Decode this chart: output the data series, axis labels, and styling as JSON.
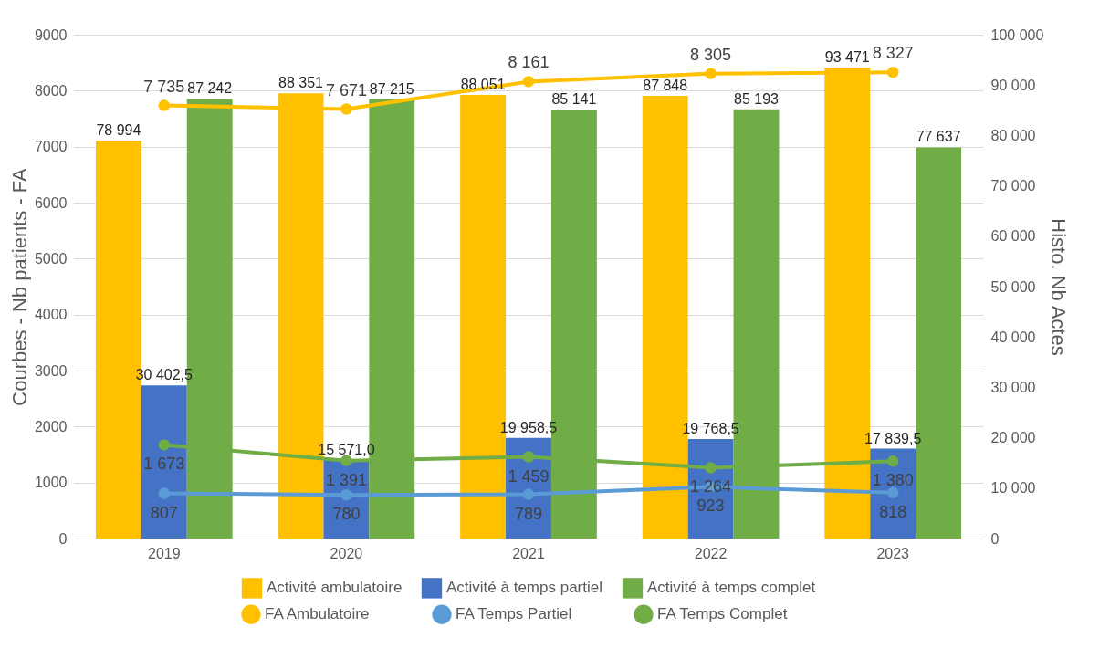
{
  "chart_data": {
    "type": "bar",
    "ylabel": "Courbes - Nb patients - FA",
    "y2label": "Histo. Nb Actes",
    "categories": [
      "2019",
      "2020",
      "2021",
      "2022",
      "2023"
    ],
    "series": [
      {
        "name": "Activité ambulatoire",
        "axis": "y2",
        "color": "#ffc000",
        "values": [
          78994,
          88351,
          88051,
          87848,
          93471
        ],
        "value_labels": [
          "78 994",
          "88 351",
          "88 051",
          "87 848",
          "93 471"
        ]
      },
      {
        "name": "Activité à temps partiel",
        "axis": "y2",
        "color": "#4472c4",
        "values": [
          30402.5,
          15571.0,
          19958.5,
          19768.5,
          17839.5
        ],
        "value_labels": [
          "30 402,5",
          "15 571,0",
          "19 958,5",
          "19 768,5",
          "17 839,5"
        ]
      },
      {
        "name": "Activité à temps complet",
        "axis": "y2",
        "color": "#70ad47",
        "values": [
          87242,
          87215,
          85141,
          85193,
          77637
        ],
        "value_labels": [
          "87 242",
          "87 215",
          "85 141",
          "85 193",
          "77 637"
        ]
      },
      {
        "name": "FA Ambulatoire",
        "type": "line",
        "color": "#ffc000",
        "values": [
          7735,
          7671,
          8161,
          8305,
          8327
        ],
        "value_labels": [
          "7 735",
          "7 671",
          "8 161",
          "8 305",
          "8 327"
        ]
      },
      {
        "name": "FA Temps Partiel",
        "type": "line",
        "color": "#5b9bd5",
        "values": [
          807,
          780,
          789,
          923,
          818
        ],
        "value_labels": [
          "807",
          "780",
          "789",
          "923",
          "818"
        ]
      },
      {
        "name": "FA Temps Complet",
        "type": "line",
        "color": "#70ad47",
        "values": [
          1673,
          1391,
          1459,
          1264,
          1380
        ],
        "value_labels": [
          "1 673",
          "1 391",
          "1 459",
          "1 264",
          "1 380"
        ]
      }
    ],
    "ylim": [
      0,
      9000
    ],
    "yticks": [
      0,
      1000,
      2000,
      3000,
      4000,
      5000,
      6000,
      7000,
      8000,
      9000
    ],
    "y2lim": [
      0,
      100000
    ],
    "y2ticks": [
      0,
      {
        "value": 10000,
        "label": "10 000"
      },
      {
        "value": 20000,
        "label": "20 000"
      },
      {
        "value": 30000,
        "label": "30 000"
      },
      {
        "value": 40000,
        "label": "40 000"
      },
      {
        "value": 50000,
        "label": "50 000"
      },
      {
        "value": 60000,
        "label": "60 000"
      },
      {
        "value": 70000,
        "label": "70 000"
      },
      {
        "value": 80000,
        "label": "80 000"
      },
      {
        "value": 90000,
        "label": "90 000"
      },
      {
        "value": 100000,
        "label": "100 000"
      }
    ],
    "grid": "y",
    "legend": "bottom",
    "marker": "circle",
    "line_style": "solid"
  }
}
